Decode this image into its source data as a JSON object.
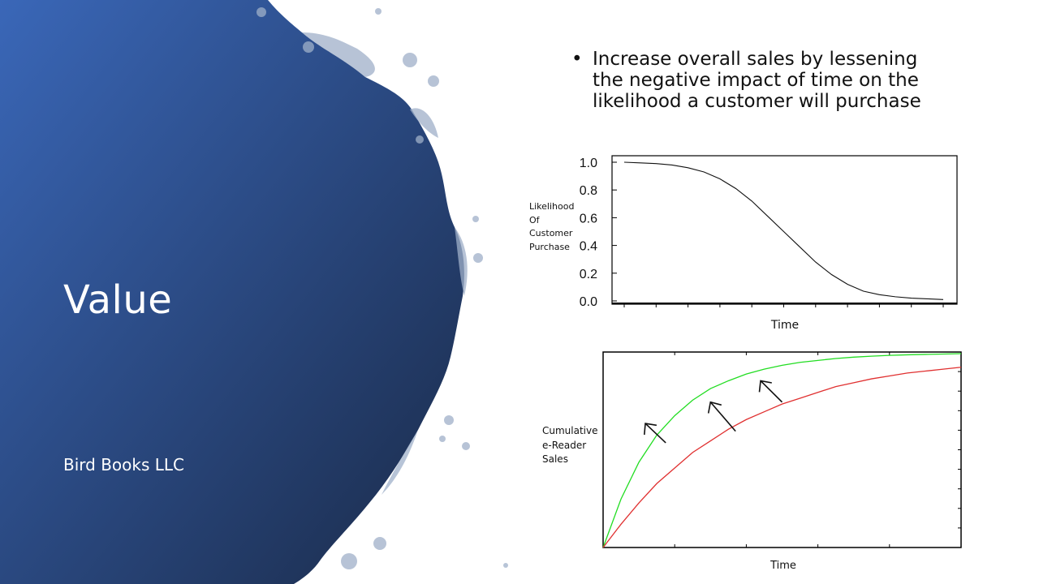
{
  "slide": {
    "title": "Value",
    "subtitle": "Bird Books LLC",
    "bullets": [
      "Increase overall sales by lessening the negative impact of time on the likelihood a customer will purchase"
    ],
    "bullet_symbol": "•"
  },
  "colors": {
    "blob_light": "#3a67b8",
    "blob_dark": "#1a2a48",
    "series_green": "#22dd22",
    "series_red": "#e03030"
  },
  "chart_data": [
    {
      "type": "line",
      "xlabel": "Time",
      "ylabel_lines": [
        "Likelihood",
        "Of",
        "Customer",
        "Purchase"
      ],
      "yticks": [
        "1.0",
        "0.8",
        "0.6",
        "0.4",
        "0.2",
        "0.0"
      ],
      "ylim": [
        0,
        1
      ],
      "xlim": [
        0,
        10
      ],
      "grid": false,
      "series": [
        {
          "x": [
            0,
            0.5,
            1,
            1.5,
            2,
            2.5,
            3,
            3.5,
            4,
            4.5,
            5,
            5.5,
            6,
            6.5,
            7,
            7.5,
            8,
            8.5,
            9,
            9.5,
            10
          ],
          "values": [
            1.0,
            0.995,
            0.99,
            0.98,
            0.96,
            0.93,
            0.88,
            0.81,
            0.72,
            0.61,
            0.5,
            0.39,
            0.28,
            0.19,
            0.12,
            0.07,
            0.045,
            0.03,
            0.02,
            0.015,
            0.01
          ]
        }
      ]
    },
    {
      "type": "line",
      "xlabel": "Time",
      "ylabel_lines": [
        "Cumulative",
        "e-Reader",
        "Sales"
      ],
      "ylim": [
        0,
        1
      ],
      "xlim": [
        0,
        10
      ],
      "grid": false,
      "series": [
        {
          "color": "#22dd22",
          "x": [
            0,
            0.5,
            1,
            1.5,
            2,
            2.5,
            3,
            3.5,
            4,
            4.5,
            5,
            5.5,
            6,
            6.5,
            7,
            7.5,
            8,
            8.5,
            9,
            9.5,
            10
          ],
          "values": [
            0,
            0.25,
            0.44,
            0.58,
            0.68,
            0.76,
            0.82,
            0.86,
            0.895,
            0.92,
            0.94,
            0.955,
            0.965,
            0.975,
            0.982,
            0.987,
            0.991,
            0.994,
            0.996,
            0.998,
            1.0
          ]
        },
        {
          "color": "#e03030",
          "x": [
            0,
            0.5,
            1,
            1.5,
            2,
            2.5,
            3,
            3.5,
            4,
            4.5,
            5,
            5.5,
            6,
            6.5,
            7,
            7.5,
            8,
            8.5,
            9,
            9.5,
            10
          ],
          "values": [
            0,
            0.12,
            0.23,
            0.33,
            0.41,
            0.49,
            0.55,
            0.61,
            0.66,
            0.7,
            0.74,
            0.77,
            0.8,
            0.83,
            0.85,
            0.87,
            0.885,
            0.9,
            0.91,
            0.92,
            0.93
          ]
        }
      ],
      "annotations": [
        {
          "type": "arrow",
          "from": [
            1.75,
            0.54
          ],
          "to": [
            1.18,
            0.64
          ]
        },
        {
          "type": "arrow",
          "from": [
            3.7,
            0.6
          ],
          "to": [
            3.0,
            0.75
          ]
        },
        {
          "type": "arrow",
          "from": [
            5.0,
            0.75
          ],
          "to": [
            4.4,
            0.86
          ]
        }
      ]
    }
  ]
}
